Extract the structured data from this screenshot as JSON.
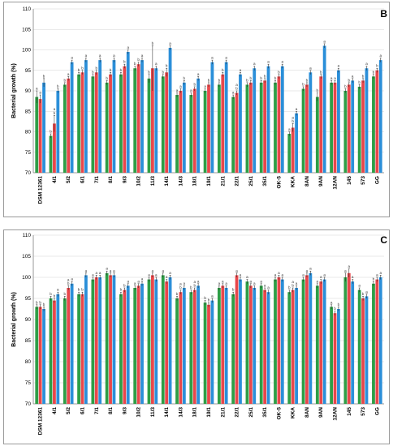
{
  "colors": {
    "series1": "#2e9e46",
    "series2": "#e8474b",
    "series3": "#2b8fd9",
    "grid": "#d6d6d6",
    "axis": "#7f7f7f"
  },
  "chart_data": [
    {
      "type": "bar",
      "panel_label": "B",
      "ylabel": "Bacterial growth (%)",
      "xlabel": "",
      "ylim": [
        70,
        110
      ],
      "yticks": [
        70,
        75,
        80,
        85,
        90,
        95,
        100,
        105,
        110
      ],
      "grid": true,
      "categories": [
        "DSM 12361",
        "4/1",
        "5/2",
        "6/1",
        "7/1",
        "8/1",
        "9/3",
        "10/2",
        "11/3",
        "14/1",
        "14/3",
        "18/1",
        "19/1",
        "21/1",
        "22/1",
        "25/1",
        "35/1",
        "OK-5",
        "KKA",
        "8AN",
        "9AN",
        "12AN",
        "145",
        "573",
        "GG"
      ],
      "series": [
        {
          "values": [
            88.5,
            79,
            91.5,
            94,
            93.5,
            92,
            94,
            95.5,
            93,
            93.5,
            89,
            89,
            90,
            91.5,
            88.5,
            91.5,
            92,
            92,
            79.5,
            90.5,
            88.5,
            92,
            90,
            91,
            93.5
          ]
        },
        {
          "values": [
            88,
            82,
            93,
            94.5,
            94.5,
            94,
            96,
            96.5,
            95.5,
            94.5,
            90,
            90.5,
            91.5,
            94,
            89.5,
            92,
            92.5,
            93.5,
            81,
            91.5,
            93.5,
            92,
            91.5,
            92.5,
            95
          ]
        },
        {
          "values": [
            92,
            90,
            97,
            97.5,
            97.5,
            97.5,
            99.5,
            97.5,
            95.5,
            100.5,
            92,
            93,
            97,
            97,
            94,
            95.5,
            96,
            96,
            84.5,
            94.5,
            101,
            95,
            92.5,
            95.5,
            97.5
          ]
        }
      ],
      "errors": [
        [
          1.5,
          0.5,
          0.5,
          0.5,
          0.5,
          0.5,
          0.5,
          0.5,
          1,
          0.5,
          0.5,
          0.5,
          0.5,
          0.5,
          0.5,
          0.5,
          0.5,
          0.5,
          0.5,
          0.5,
          1,
          0.5,
          0.5,
          0.5,
          0.5
        ],
        [
          1,
          2,
          0.5,
          0.5,
          0.5,
          0.5,
          0.5,
          0.5,
          5.5,
          1,
          0.5,
          0.5,
          0.5,
          0.5,
          0.5,
          0.5,
          0.5,
          0.5,
          1,
          0.5,
          0.5,
          0.5,
          0.5,
          0.5,
          0.5
        ],
        [
          1,
          0.5,
          0.5,
          0.5,
          0.5,
          0.5,
          0.5,
          0.5,
          0.5,
          0.5,
          0.5,
          0.5,
          0.5,
          0.5,
          0.5,
          0.5,
          0.5,
          0.5,
          0.5,
          0.5,
          0.5,
          0.5,
          0.5,
          0.5,
          0.5
        ]
      ],
      "letters": [
        [
          "a",
          "b",
          "b",
          "b",
          "b",
          "b",
          "b",
          "b",
          "b",
          "b",
          "a",
          "a",
          "a",
          "b",
          "a",
          "b",
          "b",
          "b",
          "a",
          "b",
          "b",
          "a",
          "b",
          "b",
          "b"
        ],
        [
          "a",
          "a b",
          "a",
          "b",
          "b",
          "b",
          "b",
          "b",
          "b",
          "b",
          "a",
          "b",
          "b",
          "b",
          "a b",
          "b",
          "b",
          "b",
          "a b",
          "b",
          "b",
          "a",
          "b",
          "b",
          "b"
        ],
        [
          "b",
          "b",
          "a",
          "a",
          "a",
          "a",
          "a",
          "a",
          "a",
          "a",
          "b",
          "a",
          "a",
          "a",
          "a",
          "a",
          "a",
          "a",
          "a",
          "a",
          "a",
          "a",
          "a",
          "a",
          "a"
        ]
      ]
    },
    {
      "type": "bar",
      "panel_label": "C",
      "ylabel": "Bacterial growth (%)",
      "xlabel": "",
      "ylim": [
        70,
        110
      ],
      "yticks": [
        70,
        75,
        80,
        85,
        90,
        95,
        100,
        105,
        110
      ],
      "grid": true,
      "categories": [
        "DSM 12361",
        "4/1",
        "5/2",
        "6/1",
        "7/1",
        "8/1",
        "9/3",
        "10/2",
        "11/3",
        "14/1",
        "14/3",
        "18/1",
        "19/1",
        "21/1",
        "22/1",
        "25/1",
        "35/1",
        "OK-5",
        "KKA",
        "8AN",
        "9AN",
        "12AN",
        "145",
        "573",
        "GG"
      ],
      "series": [
        {
          "values": [
            93,
            95,
            95,
            96,
            99.5,
            101,
            96,
            97.5,
            99.5,
            100.5,
            95,
            96.5,
            94,
            97.5,
            96,
            99,
            98,
            99.5,
            96.5,
            99.5,
            98,
            93,
            100,
            97,
            98.5
          ]
        },
        {
          "values": [
            93,
            94.5,
            97.5,
            96,
            100,
            100.5,
            97,
            98,
            100.5,
            99,
            96.5,
            97,
            93.5,
            98,
            100.5,
            98,
            97,
            100,
            97,
            100.5,
            99,
            91.5,
            101,
            95,
            99.5
          ]
        },
        {
          "values": [
            92.5,
            96,
            98.5,
            100.5,
            100,
            100.5,
            98,
            98.5,
            99.5,
            100,
            97.5,
            98,
            94.5,
            97.5,
            99.5,
            97.5,
            96.5,
            99.5,
            97.5,
            101,
            99.5,
            92.5,
            99,
            95.5,
            100
          ]
        }
      ],
      "errors": [
        [
          0.5,
          0.5,
          0.5,
          0.5,
          0.5,
          0.5,
          0.5,
          0.5,
          0.5,
          0.5,
          0.5,
          0.5,
          0.5,
          0.5,
          0.5,
          0.5,
          0.5,
          0.5,
          0.5,
          0.5,
          0.5,
          0.5,
          1,
          0.5,
          0.5
        ],
        [
          0.5,
          0.5,
          0.5,
          0.5,
          0.5,
          0.5,
          0.5,
          0.5,
          0.5,
          0.5,
          0.5,
          0.5,
          0.5,
          0.5,
          0.5,
          0.5,
          0.5,
          0.5,
          0.5,
          0.5,
          0.5,
          0.5,
          1,
          0.5,
          0.5
        ],
        [
          0.5,
          0.5,
          0.5,
          0.5,
          0.5,
          0.5,
          0.5,
          0.5,
          0.5,
          0.5,
          0.5,
          0.5,
          0.5,
          0.5,
          0.5,
          0.5,
          0.5,
          0.5,
          0.5,
          0.5,
          0.5,
          0.5,
          0.5,
          0.5,
          0.5
        ]
      ],
      "letters": [
        [
          "b",
          "b",
          "b",
          "b",
          "a",
          "a",
          "b",
          "a",
          "a",
          "a",
          "b",
          "b",
          "b",
          "a",
          "b",
          "a",
          "a",
          "a",
          "b",
          "a",
          "a",
          "a",
          "a",
          "a",
          "b"
        ],
        [
          "b",
          "b",
          "a b",
          "b",
          "a",
          "a",
          "b",
          "a",
          "a",
          "a",
          "a b",
          "a b",
          "b",
          "a",
          "a",
          "a",
          "a",
          "a",
          "a b",
          "a",
          "a",
          "b",
          "a",
          "b",
          "a"
        ],
        [
          "b",
          "a",
          "a",
          "a",
          "a",
          "a",
          "a",
          "a",
          "a",
          "a",
          "a",
          "a",
          "a",
          "a",
          "a",
          "a",
          "a",
          "a",
          "a",
          "a",
          "a",
          "b",
          "a",
          "a",
          "a"
        ]
      ]
    }
  ]
}
